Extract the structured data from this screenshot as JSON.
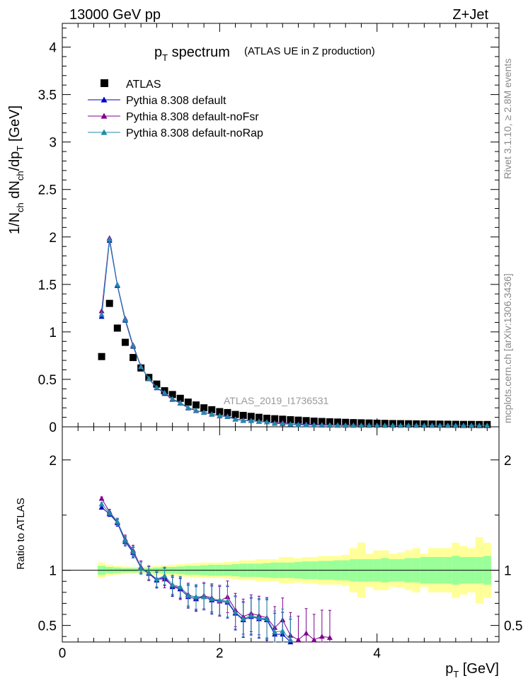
{
  "header": {
    "left": "13000 GeV pp",
    "right": "Z+Jet"
  },
  "side_labels": {
    "rivet": "Rivet 3.1.10, ≥ 2.8M events",
    "mcplots": "mcplots.cern.ch [arXiv:1306.3436]"
  },
  "chart_data": {
    "type": "scatter",
    "title_main": "p",
    "title_sub": "T",
    "title_rest": " spectrum",
    "title_note": "(ATLAS UE in Z production)",
    "analysis_label": "ATLAS_2019_I1736531",
    "xlabel": "p",
    "xlabel_sub": "T",
    "xlabel_unit": " [GeV]",
    "ylabel_top": "1/N_ch dN_ch/dp_T [GeV]",
    "ylabel_top_parts": {
      "a": "1/N",
      "b": "ch",
      "c": " dN",
      "d": "ch",
      "e": "/dp",
      "f": "T",
      "g": " [GeV]"
    },
    "ylabel_ratio": "Ratio to ATLAS",
    "xlim": [
      0,
      5.55
    ],
    "ylim_top": [
      0,
      4.25
    ],
    "ylim_ratio": [
      0.35,
      2.3
    ],
    "xticks": [
      0,
      2,
      4
    ],
    "yticks_top": [
      0,
      0.5,
      1,
      1.5,
      2,
      2.5,
      3,
      3.5,
      4
    ],
    "yticks_ratio": [
      0.5,
      1,
      2
    ],
    "yticks_top_labels": [
      "0",
      "0.5",
      "1",
      "1.5",
      "2",
      "2.5",
      "3",
      "3.5",
      "4"
    ],
    "yticks_ratio_labels": [
      "0.5",
      "1",
      "2"
    ],
    "x": [
      0.5,
      0.6,
      0.7,
      0.8,
      0.9,
      1.0,
      1.1,
      1.2,
      1.3,
      1.4,
      1.5,
      1.6,
      1.7,
      1.8,
      1.9,
      2.0,
      2.1,
      2.2,
      2.3,
      2.4,
      2.5,
      2.6,
      2.7,
      2.8,
      2.9,
      3.0,
      3.1,
      3.2,
      3.3,
      3.4,
      3.5,
      3.6,
      3.7,
      3.8,
      3.9,
      4.0,
      4.1,
      4.2,
      4.3,
      4.4,
      4.5,
      4.6,
      4.7,
      4.8,
      4.9,
      5.0,
      5.1,
      5.2,
      5.3,
      5.4
    ],
    "legend": [
      "ATLAS",
      "Pythia 8.308 default",
      "Pythia 8.308 default-noFsr",
      "Pythia 8.308 default-noRap"
    ],
    "colors": {
      "atlas": "#000000",
      "default": "#0000cc",
      "noFsr": "#800090",
      "noRap": "#1f8ca8",
      "band_stat": "#99ff99",
      "band_tot": "#ffff99"
    },
    "atlas": [
      0.74,
      1.3,
      1.04,
      0.89,
      0.73,
      0.62,
      0.52,
      0.45,
      0.38,
      0.34,
      0.3,
      0.26,
      0.23,
      0.2,
      0.18,
      0.16,
      0.15,
      0.13,
      0.12,
      0.11,
      0.1,
      0.09,
      0.085,
      0.08,
      0.075,
      0.07,
      0.065,
      0.06,
      0.056,
      0.053,
      0.05,
      0.047,
      0.044,
      0.042,
      0.04,
      0.038,
      0.036,
      0.034,
      0.033,
      0.032,
      0.031,
      0.03,
      0.029,
      0.028,
      0.027,
      0.026,
      0.025,
      0.025,
      0.024,
      0.024
    ],
    "ratios": {
      "default": [
        1.57,
        1.51,
        1.43,
        1.26,
        1.16,
        1.02,
        0.97,
        0.91,
        0.94,
        0.85,
        0.83,
        0.76,
        0.74,
        0.76,
        0.73,
        0.72,
        0.71,
        0.61,
        0.55,
        0.58,
        0.56,
        0.55,
        0.42,
        0.42,
        0.35,
        0.3
      ],
      "noFsr": [
        1.65,
        1.53,
        1.44,
        1.28,
        1.18,
        1.03,
        0.97,
        0.92,
        0.92,
        0.86,
        0.84,
        0.78,
        0.75,
        0.77,
        0.75,
        0.72,
        0.76,
        0.64,
        0.58,
        0.61,
        0.59,
        0.57,
        0.48,
        0.55,
        0.41,
        0.37,
        0.43,
        0.37,
        0.4,
        0.39
      ],
      "noRap": [
        1.6,
        1.52,
        1.44,
        1.27,
        1.17,
        1.02,
        0.98,
        0.92,
        0.95,
        0.87,
        0.85,
        0.77,
        0.76,
        0.76,
        0.74,
        0.73,
        0.72,
        0.62,
        0.56,
        0.59,
        0.57,
        0.56,
        0.44,
        0.45,
        0.37,
        0.33
      ]
    },
    "band_stat_halfwidth": [
      0.04,
      0.03,
      0.025,
      0.02,
      0.02,
      0.02,
      0.02,
      0.025,
      0.03,
      0.03,
      0.035,
      0.04,
      0.04,
      0.045,
      0.05,
      0.05,
      0.05,
      0.055,
      0.06,
      0.06,
      0.06,
      0.065,
      0.07,
      0.07,
      0.07,
      0.075,
      0.08,
      0.08,
      0.085,
      0.085,
      0.09,
      0.09,
      0.1,
      0.1,
      0.1,
      0.1,
      0.11,
      0.1,
      0.1,
      0.11,
      0.11,
      0.12,
      0.12,
      0.12,
      0.12,
      0.13,
      0.12,
      0.12,
      0.12,
      0.13
    ],
    "band_tot_halfwidth": [
      0.07,
      0.05,
      0.04,
      0.035,
      0.03,
      0.03,
      0.035,
      0.04,
      0.045,
      0.05,
      0.055,
      0.06,
      0.065,
      0.07,
      0.07,
      0.07,
      0.075,
      0.08,
      0.09,
      0.09,
      0.1,
      0.1,
      0.1,
      0.12,
      0.12,
      0.11,
      0.12,
      0.12,
      0.13,
      0.13,
      0.13,
      0.14,
      0.2,
      0.25,
      0.15,
      0.18,
      0.18,
      0.15,
      0.16,
      0.18,
      0.2,
      0.15,
      0.2,
      0.2,
      0.2,
      0.25,
      0.22,
      0.2,
      0.3,
      0.25
    ]
  }
}
